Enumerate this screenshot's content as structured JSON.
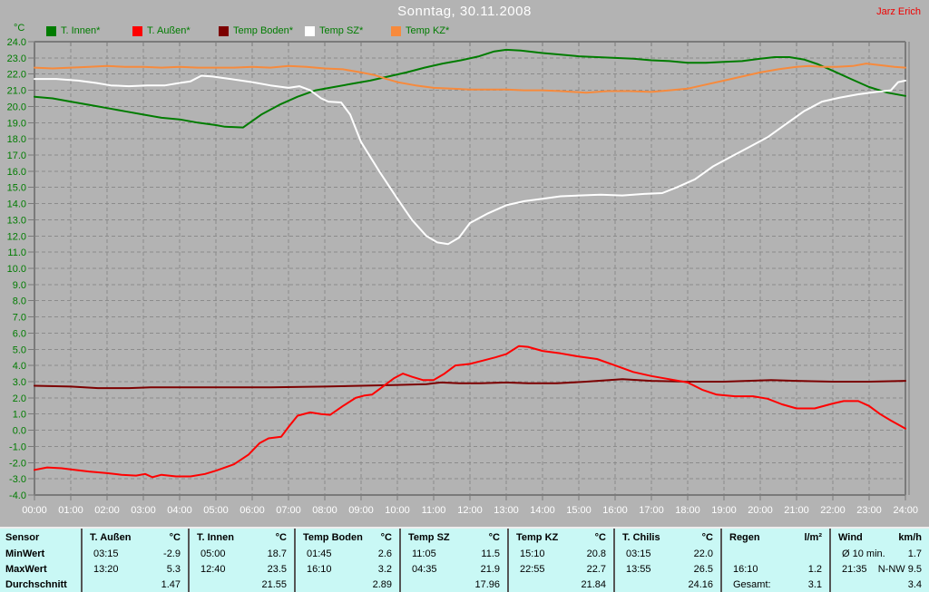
{
  "header": {
    "title": "Sonntag, 30.11.2008",
    "author": "Jarz Erich"
  },
  "chart_data": {
    "type": "line",
    "title": "Sonntag, 30.11.2008",
    "unit_label": "°C",
    "grid": true,
    "legend_position": "top",
    "ylim": [
      -4,
      24
    ],
    "xlim": [
      0,
      24
    ],
    "ytick_labels": [
      "24.0",
      "23.0",
      "22.0",
      "21.0",
      "20.0",
      "19.0",
      "18.0",
      "17.0",
      "16.0",
      "15.0",
      "14.0",
      "13.0",
      "12.0",
      "11.0",
      "10.0",
      "9.0",
      "8.0",
      "7.0",
      "6.0",
      "5.0",
      "4.0",
      "3.0",
      "2.0",
      "1.0",
      "0.0",
      "-1.0",
      "-2.0",
      "-3.0",
      "-4.0"
    ],
    "xtick_labels": [
      "00:00",
      "01:00",
      "02:00",
      "03:00",
      "04:00",
      "05:00",
      "06:00",
      "07:00",
      "08:00",
      "09:00",
      "10:00",
      "11:00",
      "12:00",
      "13:00",
      "14:00",
      "15:00",
      "16:00",
      "17:00",
      "18:00",
      "19:00",
      "20:00",
      "21:00",
      "22:00",
      "23:00",
      "24:00"
    ],
    "legend": [
      {
        "label": "T. Innen*",
        "color": "#007c00"
      },
      {
        "label": "T. Außen*",
        "color": "#ff0000"
      },
      {
        "label": "Temp Boden*",
        "color": "#7c0000"
      },
      {
        "label": "Temp SZ*",
        "color": "#ffffff"
      },
      {
        "label": "Temp KZ*",
        "color": "#f78a3c"
      }
    ],
    "series": [
      {
        "name": "Temp Boden*",
        "color": "#7c0000",
        "points": [
          [
            0,
            2.75
          ],
          [
            1,
            2.7
          ],
          [
            1.75,
            2.6
          ],
          [
            2.6,
            2.6
          ],
          [
            3.2,
            2.65
          ],
          [
            5,
            2.65
          ],
          [
            6.5,
            2.65
          ],
          [
            8,
            2.7
          ],
          [
            9,
            2.75
          ],
          [
            10,
            2.8
          ],
          [
            10.8,
            2.85
          ],
          [
            11.2,
            2.95
          ],
          [
            11.7,
            2.9
          ],
          [
            12.3,
            2.9
          ],
          [
            13,
            2.95
          ],
          [
            13.6,
            2.9
          ],
          [
            14.4,
            2.9
          ],
          [
            15.2,
            3.0
          ],
          [
            16.2,
            3.15
          ],
          [
            17,
            3.05
          ],
          [
            18,
            3.0
          ],
          [
            19,
            3.0
          ],
          [
            20.3,
            3.1
          ],
          [
            21,
            3.05
          ],
          [
            22,
            3.0
          ],
          [
            23,
            3.0
          ],
          [
            24,
            3.05
          ]
        ]
      },
      {
        "name": "T. Innen*",
        "color": "#007c00",
        "points": [
          [
            0,
            20.6
          ],
          [
            0.5,
            20.5
          ],
          [
            1,
            20.3
          ],
          [
            1.5,
            20.1
          ],
          [
            2,
            19.9
          ],
          [
            2.5,
            19.7
          ],
          [
            3,
            19.5
          ],
          [
            3.5,
            19.3
          ],
          [
            4,
            19.2
          ],
          [
            4.5,
            19.0
          ],
          [
            5,
            18.85
          ],
          [
            5.25,
            18.75
          ],
          [
            5.75,
            18.7
          ],
          [
            6.25,
            19.5
          ],
          [
            6.75,
            20.1
          ],
          [
            7.25,
            20.6
          ],
          [
            7.75,
            21.0
          ],
          [
            8.25,
            21.2
          ],
          [
            8.75,
            21.4
          ],
          [
            9.25,
            21.6
          ],
          [
            9.75,
            21.85
          ],
          [
            10.25,
            22.1
          ],
          [
            10.75,
            22.4
          ],
          [
            11.25,
            22.65
          ],
          [
            11.75,
            22.85
          ],
          [
            12.25,
            23.1
          ],
          [
            12.67,
            23.4
          ],
          [
            13,
            23.5
          ],
          [
            13.4,
            23.45
          ],
          [
            14,
            23.3
          ],
          [
            14.5,
            23.2
          ],
          [
            15,
            23.1
          ],
          [
            15.5,
            23.05
          ],
          [
            16,
            23.0
          ],
          [
            16.5,
            22.95
          ],
          [
            17,
            22.85
          ],
          [
            17.5,
            22.8
          ],
          [
            18,
            22.7
          ],
          [
            18.5,
            22.7
          ],
          [
            19,
            22.75
          ],
          [
            19.5,
            22.8
          ],
          [
            20,
            22.95
          ],
          [
            20.4,
            23.05
          ],
          [
            20.8,
            23.05
          ],
          [
            21.2,
            22.9
          ],
          [
            21.6,
            22.6
          ],
          [
            22,
            22.2
          ],
          [
            22.5,
            21.7
          ],
          [
            23,
            21.2
          ],
          [
            23.5,
            20.85
          ],
          [
            24,
            20.65
          ]
        ]
      },
      {
        "name": "T. Außen*",
        "color": "#ff0000",
        "points": [
          [
            0,
            -2.45
          ],
          [
            0.35,
            -2.3
          ],
          [
            0.75,
            -2.35
          ],
          [
            1.1,
            -2.45
          ],
          [
            1.5,
            -2.55
          ],
          [
            2,
            -2.65
          ],
          [
            2.4,
            -2.75
          ],
          [
            2.8,
            -2.8
          ],
          [
            3.05,
            -2.7
          ],
          [
            3.25,
            -2.9
          ],
          [
            3.5,
            -2.75
          ],
          [
            3.9,
            -2.85
          ],
          [
            4.3,
            -2.85
          ],
          [
            4.7,
            -2.7
          ],
          [
            5,
            -2.5
          ],
          [
            5.5,
            -2.1
          ],
          [
            5.9,
            -1.5
          ],
          [
            6.2,
            -0.8
          ],
          [
            6.45,
            -0.5
          ],
          [
            6.8,
            -0.4
          ],
          [
            7,
            0.2
          ],
          [
            7.25,
            0.9
          ],
          [
            7.6,
            1.1
          ],
          [
            7.9,
            1.0
          ],
          [
            8.15,
            0.95
          ],
          [
            8.5,
            1.5
          ],
          [
            8.85,
            2.0
          ],
          [
            9.1,
            2.15
          ],
          [
            9.3,
            2.2
          ],
          [
            9.6,
            2.7
          ],
          [
            9.9,
            3.2
          ],
          [
            10.15,
            3.5
          ],
          [
            10.4,
            3.3
          ],
          [
            10.7,
            3.1
          ],
          [
            11,
            3.1
          ],
          [
            11.3,
            3.5
          ],
          [
            11.6,
            4.0
          ],
          [
            12,
            4.1
          ],
          [
            12.35,
            4.3
          ],
          [
            12.7,
            4.5
          ],
          [
            13,
            4.7
          ],
          [
            13.35,
            5.2
          ],
          [
            13.6,
            5.15
          ],
          [
            14,
            4.9
          ],
          [
            14.5,
            4.75
          ],
          [
            15,
            4.55
          ],
          [
            15.5,
            4.4
          ],
          [
            16,
            4.0
          ],
          [
            16.5,
            3.6
          ],
          [
            17,
            3.35
          ],
          [
            17.5,
            3.15
          ],
          [
            18,
            2.95
          ],
          [
            18.4,
            2.5
          ],
          [
            18.8,
            2.2
          ],
          [
            19.3,
            2.1
          ],
          [
            19.8,
            2.1
          ],
          [
            20.2,
            1.95
          ],
          [
            20.6,
            1.6
          ],
          [
            21,
            1.35
          ],
          [
            21.5,
            1.35
          ],
          [
            22,
            1.65
          ],
          [
            22.3,
            1.8
          ],
          [
            22.7,
            1.8
          ],
          [
            23,
            1.5
          ],
          [
            23.3,
            1.0
          ],
          [
            23.6,
            0.6
          ],
          [
            24,
            0.1
          ]
        ]
      },
      {
        "name": "Temp SZ*",
        "color": "#ffffff",
        "points": [
          [
            0,
            21.7
          ],
          [
            0.6,
            21.7
          ],
          [
            1.2,
            21.6
          ],
          [
            1.7,
            21.45
          ],
          [
            2.1,
            21.3
          ],
          [
            2.6,
            21.25
          ],
          [
            3.1,
            21.3
          ],
          [
            3.6,
            21.3
          ],
          [
            4,
            21.45
          ],
          [
            4.3,
            21.55
          ],
          [
            4.6,
            21.9
          ],
          [
            4.9,
            21.85
          ],
          [
            5.4,
            21.7
          ],
          [
            6,
            21.5
          ],
          [
            6.5,
            21.3
          ],
          [
            7,
            21.15
          ],
          [
            7.3,
            21.25
          ],
          [
            7.6,
            21.0
          ],
          [
            7.9,
            20.5
          ],
          [
            8.1,
            20.3
          ],
          [
            8.45,
            20.25
          ],
          [
            8.7,
            19.5
          ],
          [
            9,
            17.8
          ],
          [
            9.5,
            16.0
          ],
          [
            10,
            14.3
          ],
          [
            10.4,
            13.0
          ],
          [
            10.8,
            12.0
          ],
          [
            11.1,
            11.6
          ],
          [
            11.4,
            11.5
          ],
          [
            11.7,
            11.9
          ],
          [
            12,
            12.8
          ],
          [
            12.5,
            13.4
          ],
          [
            13,
            13.9
          ],
          [
            13.5,
            14.15
          ],
          [
            14,
            14.3
          ],
          [
            14.5,
            14.45
          ],
          [
            15,
            14.5
          ],
          [
            15.6,
            14.55
          ],
          [
            16.2,
            14.5
          ],
          [
            16.8,
            14.6
          ],
          [
            17.3,
            14.65
          ],
          [
            17.7,
            15.0
          ],
          [
            18.2,
            15.5
          ],
          [
            18.7,
            16.3
          ],
          [
            19.2,
            16.9
          ],
          [
            19.7,
            17.5
          ],
          [
            20.2,
            18.1
          ],
          [
            20.7,
            18.9
          ],
          [
            21.2,
            19.7
          ],
          [
            21.7,
            20.3
          ],
          [
            22.2,
            20.55
          ],
          [
            22.7,
            20.75
          ],
          [
            23.2,
            20.9
          ],
          [
            23.6,
            21.0
          ],
          [
            23.8,
            21.5
          ],
          [
            24,
            21.6
          ]
        ]
      },
      {
        "name": "Temp KZ*",
        "color": "#f78a3c",
        "points": [
          [
            0,
            22.4
          ],
          [
            0.5,
            22.35
          ],
          [
            1,
            22.4
          ],
          [
            1.5,
            22.45
          ],
          [
            2,
            22.5
          ],
          [
            2.5,
            22.45
          ],
          [
            3,
            22.45
          ],
          [
            3.5,
            22.4
          ],
          [
            4,
            22.45
          ],
          [
            4.5,
            22.4
          ],
          [
            5,
            22.4
          ],
          [
            5.5,
            22.4
          ],
          [
            6,
            22.45
          ],
          [
            6.5,
            22.4
          ],
          [
            7,
            22.5
          ],
          [
            7.5,
            22.45
          ],
          [
            8,
            22.35
          ],
          [
            8.5,
            22.3
          ],
          [
            9,
            22.1
          ],
          [
            9.35,
            21.95
          ],
          [
            9.7,
            21.7
          ],
          [
            10,
            21.5
          ],
          [
            10.5,
            21.3
          ],
          [
            11,
            21.15
          ],
          [
            11.5,
            21.1
          ],
          [
            12,
            21.05
          ],
          [
            12.5,
            21.05
          ],
          [
            13,
            21.05
          ],
          [
            13.5,
            21.0
          ],
          [
            14,
            21.0
          ],
          [
            14.5,
            20.95
          ],
          [
            15.2,
            20.85
          ],
          [
            15.8,
            20.95
          ],
          [
            16.4,
            20.95
          ],
          [
            17,
            20.9
          ],
          [
            17.5,
            21.0
          ],
          [
            18,
            21.1
          ],
          [
            18.5,
            21.35
          ],
          [
            19,
            21.6
          ],
          [
            19.5,
            21.85
          ],
          [
            20,
            22.1
          ],
          [
            20.5,
            22.3
          ],
          [
            21,
            22.45
          ],
          [
            21.35,
            22.5
          ],
          [
            21.7,
            22.45
          ],
          [
            22.1,
            22.45
          ],
          [
            22.55,
            22.5
          ],
          [
            22.92,
            22.65
          ],
          [
            23.3,
            22.55
          ],
          [
            23.7,
            22.45
          ],
          [
            24,
            22.4
          ]
        ]
      }
    ]
  },
  "stats_table": {
    "row_labels": [
      "Sensor",
      "MinWert",
      "MaxWert",
      "Durchschnitt"
    ],
    "columns": [
      {
        "name": "T. Außen",
        "unit": "°C",
        "rows": [
          [
            "03:15",
            "-2.9"
          ],
          [
            "13:20",
            "5.3"
          ],
          [
            "",
            "1.47"
          ]
        ]
      },
      {
        "name": "T. Innen",
        "unit": "°C",
        "rows": [
          [
            "05:00",
            "18.7"
          ],
          [
            "12:40",
            "23.5"
          ],
          [
            "",
            "21.55"
          ]
        ]
      },
      {
        "name": "Temp Boden",
        "unit": "°C",
        "rows": [
          [
            "01:45",
            "2.6"
          ],
          [
            "16:10",
            "3.2"
          ],
          [
            "",
            "2.89"
          ]
        ]
      },
      {
        "name": "Temp SZ",
        "unit": "°C",
        "rows": [
          [
            "11:05",
            "11.5"
          ],
          [
            "04:35",
            "21.9"
          ],
          [
            "",
            "17.96"
          ]
        ]
      },
      {
        "name": "Temp KZ",
        "unit": "°C",
        "rows": [
          [
            "15:10",
            "20.8"
          ],
          [
            "22:55",
            "22.7"
          ],
          [
            "",
            "21.84"
          ]
        ]
      },
      {
        "name": "T. Chilis",
        "unit": "°C",
        "rows": [
          [
            "03:15",
            "22.0"
          ],
          [
            "13:55",
            "26.5"
          ],
          [
            "",
            "24.16"
          ]
        ]
      },
      {
        "name": "Regen",
        "unit": "l/m²",
        "rows": [
          [
            "",
            ""
          ],
          [
            "16:10",
            "1.2"
          ],
          [
            "Gesamt:",
            "3.1"
          ]
        ]
      },
      {
        "name": "Wind",
        "unit": "km/h",
        "rows": [
          [
            "Ø 10 min.",
            "1.7"
          ],
          [
            "21:35",
            "N-NW 9.5"
          ],
          [
            "",
            "3.4"
          ]
        ]
      }
    ]
  }
}
